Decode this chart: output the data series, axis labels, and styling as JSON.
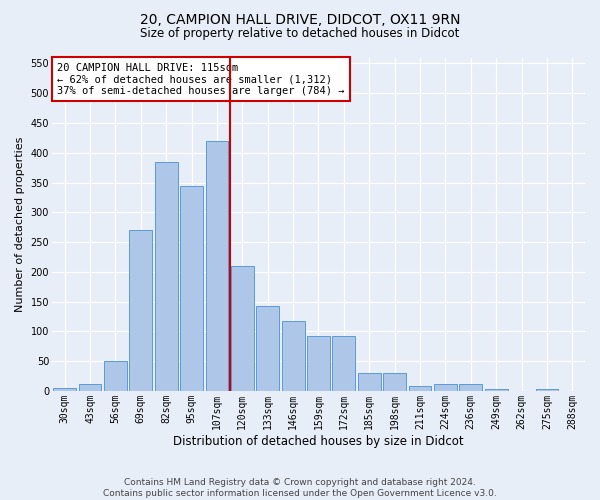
{
  "title_line1": "20, CAMPION HALL DRIVE, DIDCOT, OX11 9RN",
  "title_line2": "Size of property relative to detached houses in Didcot",
  "xlabel": "Distribution of detached houses by size in Didcot",
  "ylabel": "Number of detached properties",
  "footer_line1": "Contains HM Land Registry data © Crown copyright and database right 2024.",
  "footer_line2": "Contains public sector information licensed under the Open Government Licence v3.0.",
  "categories": [
    "30sqm",
    "43sqm",
    "56sqm",
    "69sqm",
    "82sqm",
    "95sqm",
    "107sqm",
    "120sqm",
    "133sqm",
    "146sqm",
    "159sqm",
    "172sqm",
    "185sqm",
    "198sqm",
    "211sqm",
    "224sqm",
    "236sqm",
    "249sqm",
    "262sqm",
    "275sqm",
    "288sqm"
  ],
  "values": [
    5,
    12,
    50,
    270,
    385,
    345,
    420,
    210,
    143,
    117,
    93,
    93,
    30,
    30,
    8,
    12,
    12,
    3,
    0,
    3,
    0
  ],
  "bar_color": "#aec6e8",
  "bar_edge_color": "#5b9bd5",
  "background_color": "#e8eef8",
  "grid_color": "#ffffff",
  "vline_x_index": 7,
  "vline_color": "#cc0000",
  "annotation_box_text": "20 CAMPION HALL DRIVE: 115sqm\n← 62% of detached houses are smaller (1,312)\n37% of semi-detached houses are larger (784) →",
  "annotation_box_color": "#cc0000",
  "annotation_box_bg": "#ffffff",
  "ylim": [
    0,
    560
  ],
  "yticks": [
    0,
    50,
    100,
    150,
    200,
    250,
    300,
    350,
    400,
    450,
    500,
    550
  ],
  "title_fontsize": 10,
  "subtitle_fontsize": 8.5,
  "xlabel_fontsize": 8.5,
  "ylabel_fontsize": 8,
  "tick_fontsize": 7,
  "ann_fontsize": 7.5,
  "footer_fontsize": 6.5
}
